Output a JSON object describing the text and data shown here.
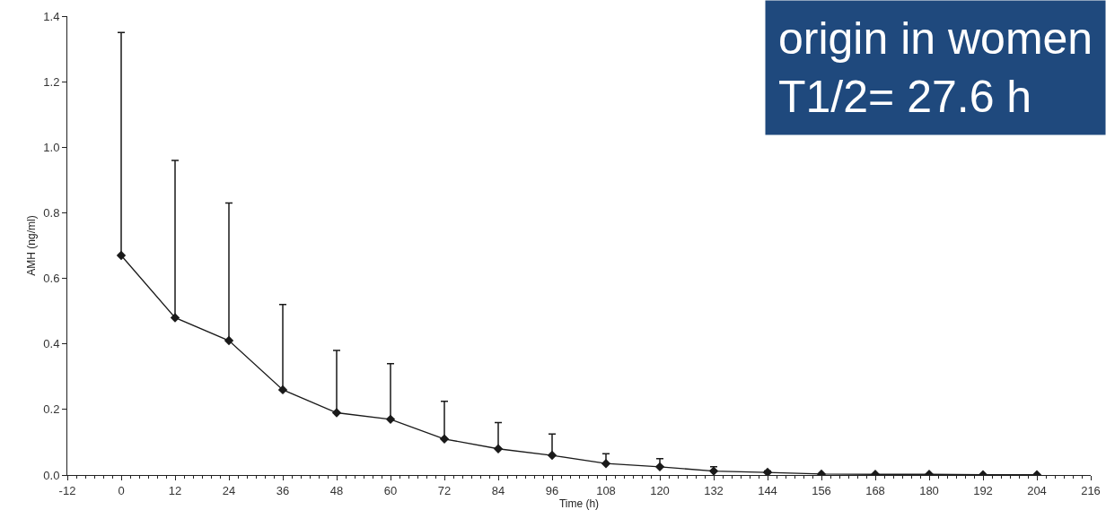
{
  "chart_data": {
    "type": "line",
    "xlabel": "Time (h)",
    "ylabel": "AMH (ng/ml)",
    "annotations": [
      "origin in women",
      "T1/2= 27.6 h"
    ],
    "x": [
      0,
      12,
      24,
      36,
      48,
      60,
      72,
      84,
      96,
      108,
      120,
      132,
      144,
      156,
      168,
      180,
      192,
      204
    ],
    "series": [
      {
        "color": "#1a1a1a",
        "values": [
          0.67,
          0.48,
          0.41,
          0.26,
          0.19,
          0.17,
          0.11,
          0.08,
          0.06,
          0.035,
          0.025,
          0.012,
          0.008,
          0.003,
          0.002,
          0.002,
          0.001,
          0.001
        ],
        "errors": [
          [
            0.67,
            1.35
          ],
          [
            0.48,
            0.96
          ],
          [
            0.41,
            0.83
          ],
          [
            0.26,
            0.52
          ],
          [
            0.19,
            0.38
          ],
          [
            0.17,
            0.34
          ],
          [
            0.11,
            0.225
          ],
          [
            0.08,
            0.16
          ],
          [
            0.06,
            0.125
          ],
          [
            0.035,
            0.065
          ],
          [
            0.025,
            0.05
          ],
          [
            0.012,
            0.025
          ],
          [
            0.008,
            0.012
          ],
          null,
          null,
          null,
          null,
          null
        ]
      }
    ],
    "xlim": [
      -12,
      216
    ],
    "xticks": [
      -12,
      0,
      12,
      24,
      36,
      48,
      60,
      72,
      84,
      96,
      108,
      120,
      132,
      144,
      156,
      168,
      180,
      192,
      204,
      216
    ],
    "ylim": [
      0,
      1.4
    ],
    "yticks": [
      {
        "value": 0,
        "label": "0.0"
      },
      0.2,
      0.4,
      0.6,
      0.8,
      {
        "value": 1,
        "label": "1.0"
      },
      1.2,
      1.4
    ],
    "grid": false,
    "marker": "diamond",
    "line_style": "solid"
  }
}
